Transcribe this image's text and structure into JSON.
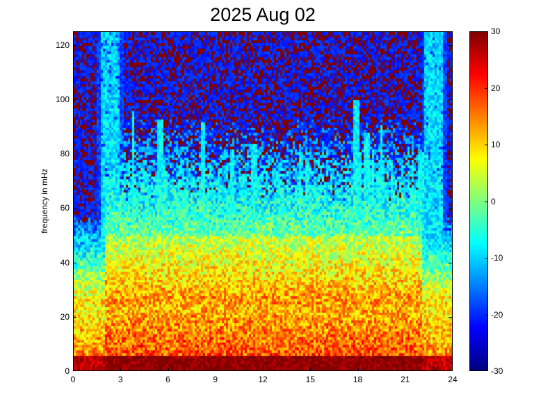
{
  "chart_data": {
    "type": "heatmap",
    "title": "2025 Aug 02",
    "xlabel": "",
    "ylabel": "frequency in mHz",
    "xlim": [
      0,
      24
    ],
    "ylim": [
      0,
      125
    ],
    "x_ticks": [
      "0",
      "3",
      "6",
      "9",
      "12",
      "15",
      "18",
      "21",
      "24"
    ],
    "y_ticks": [
      "0",
      "20",
      "40",
      "60",
      "80",
      "100",
      "120"
    ],
    "colorbar": {
      "range": [
        -30,
        30
      ],
      "ticks": [
        "30",
        "20",
        "10",
        "0",
        "-10",
        "-20",
        "-30"
      ],
      "colormap": "jet"
    },
    "colors": {
      "low": "#00007f",
      "mid": "#7fff7f",
      "high": "#7f0000"
    },
    "features": {
      "high_power_band_mHz": [
        0,
        10
      ],
      "bright_columns_hours": [
        2.3,
        22.8
      ],
      "active_interval_hours": [
        2,
        22
      ],
      "activity_ceiling_mHz": 50
    }
  }
}
